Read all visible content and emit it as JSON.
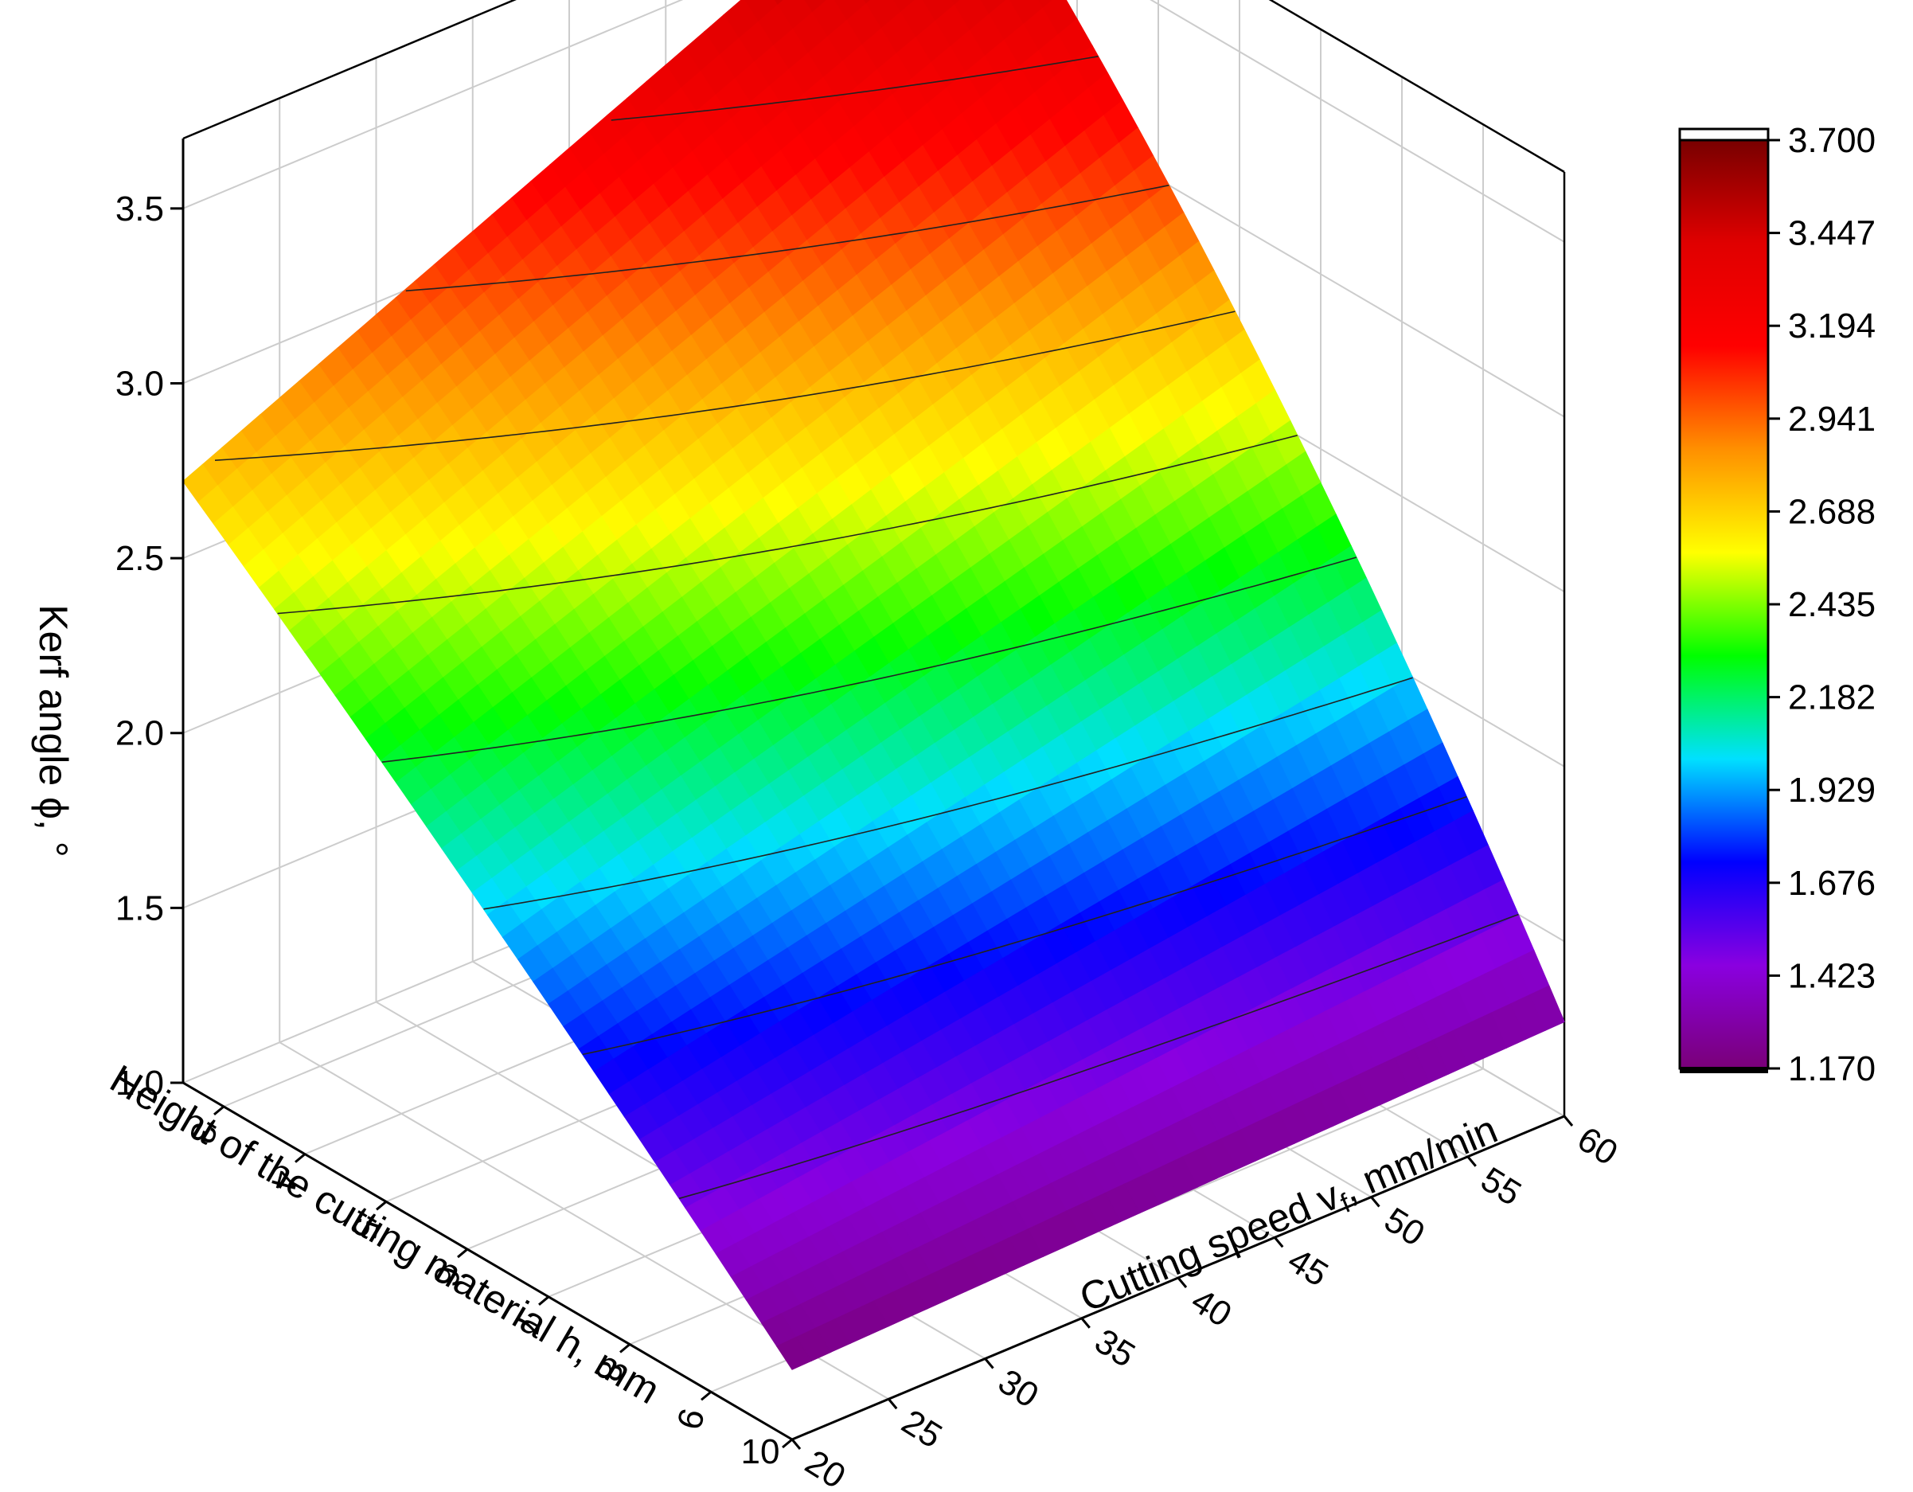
{
  "chart_data": {
    "type": "surface",
    "title": "",
    "zlabel": "Kerf angle ϕ, °",
    "xlabel": "Height of the cutting material h, mm",
    "ylabel_main": "Cutting speed v",
    "ylabel_sub": "f",
    "ylabel_tail": ", mm/min",
    "x_ticks": [
      "3",
      "4",
      "5",
      "6",
      "7",
      "8",
      "9",
      "10"
    ],
    "y_ticks": [
      "20",
      "25",
      "30",
      "35",
      "40",
      "45",
      "50",
      "55",
      "60"
    ],
    "z_ticks": [
      "1.0",
      "1.5",
      "2.0",
      "2.5",
      "3.0",
      "3.5"
    ],
    "xlim": [
      2.5,
      10
    ],
    "ylim": [
      20,
      60
    ],
    "zlim": [
      1.0,
      3.7
    ],
    "corners": [
      {
        "h": 2.5,
        "v": 20,
        "phi": 2.72
      },
      {
        "h": 2.5,
        "v": 60,
        "phi": 3.7
      },
      {
        "h": 10,
        "v": 20,
        "phi": 1.2
      },
      {
        "h": 10,
        "v": 60,
        "phi": 1.27
      }
    ],
    "colorbar": {
      "min": 1.17,
      "max": 3.7,
      "labels": [
        "3.700",
        "3.447",
        "3.194",
        "2.941",
        "2.688",
        "2.435",
        "2.182",
        "1.929",
        "1.676",
        "1.423",
        "1.170"
      ]
    },
    "colors": {
      "stops": [
        "#7a0078",
        "#8a00e0",
        "#0000ff",
        "#00e0ff",
        "#00ff00",
        "#ffff00",
        "#ff9000",
        "#ff0000",
        "#e00000",
        "#780000"
      ],
      "grid": "#cccccc",
      "axis": "#000000"
    }
  }
}
